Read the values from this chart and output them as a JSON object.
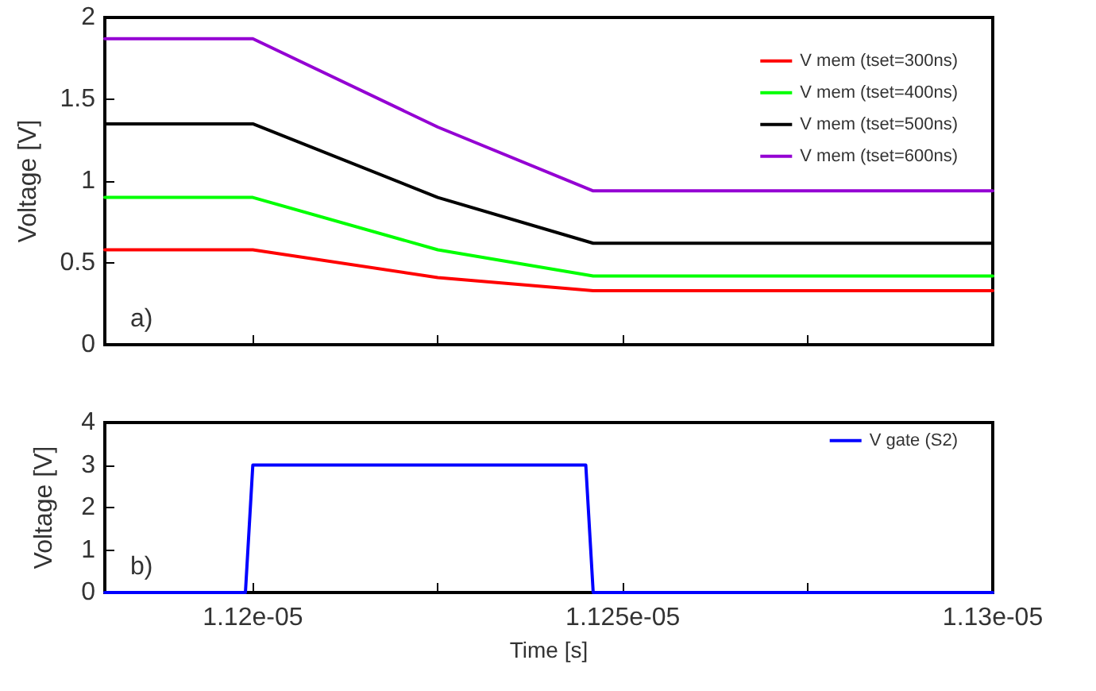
{
  "chart_data": [
    {
      "type": "line",
      "ylabel": "Voltage [V]",
      "annotations": [
        "a)"
      ],
      "legend": "top right",
      "grid": false,
      "tick_labels": "y",
      "marker": "none",
      "line_style": "solid",
      "xlim": [
        1.118e-05,
        1.13e-05
      ],
      "xticks": [
        {
          "value": 1.12e-05,
          "label": null
        },
        {
          "value": 1.1225e-05,
          "label": null
        },
        {
          "value": 1.125e-05,
          "label": null
        },
        {
          "value": 1.1275e-05,
          "label": null
        },
        {
          "value": 1.13e-05,
          "label": null
        }
      ],
      "ylim": [
        0,
        2
      ],
      "yticks": [
        0,
        0.5,
        1,
        1.5,
        2
      ],
      "x": [
        1.118e-05,
        1.12e-05,
        1.1225e-05,
        1.1246e-05,
        1.13e-05
      ],
      "series": [
        {
          "name": "V mem (tset=300ns)",
          "color": "#ff0000",
          "values": [
            0.58,
            0.58,
            0.41,
            0.33,
            0.33
          ]
        },
        {
          "name": "V mem (tset=400ns)",
          "color": "#00ff00",
          "values": [
            0.9,
            0.9,
            0.58,
            0.42,
            0.42
          ]
        },
        {
          "name": "V mem (tset=500ns)",
          "color": "#000000",
          "values": [
            1.35,
            1.35,
            0.9,
            0.62,
            0.62
          ]
        },
        {
          "name": "V mem (tset=600ns)",
          "color": "#9400d3",
          "values": [
            1.87,
            1.87,
            1.33,
            0.94,
            0.94
          ]
        }
      ]
    },
    {
      "type": "line",
      "xlabel": "Time [s]",
      "ylabel": "Voltage [V]",
      "annotations": [
        "b)"
      ],
      "legend": "top right",
      "grid": false,
      "marker": "none",
      "line_style": "solid",
      "xlim": [
        1.118e-05,
        1.13e-05
      ],
      "xticks": [
        {
          "value": 1.12e-05,
          "label": "1.12e-05"
        },
        {
          "value": 1.1225e-05,
          "label": null
        },
        {
          "value": 1.125e-05,
          "label": "1.125e-05"
        },
        {
          "value": 1.1275e-05,
          "label": null
        },
        {
          "value": 1.13e-05,
          "label": "1.13e-05"
        }
      ],
      "ylim": [
        0,
        4
      ],
      "yticks": [
        0,
        1,
        2,
        3,
        4
      ],
      "x": [
        1.118e-05,
        1.1199e-05,
        1.12e-05,
        1.1245e-05,
        1.1246e-05,
        1.13e-05
      ],
      "series": [
        {
          "name": "V gate (S2)",
          "color": "#0000ff",
          "values": [
            0,
            0,
            3,
            3,
            0,
            0
          ]
        }
      ]
    }
  ]
}
